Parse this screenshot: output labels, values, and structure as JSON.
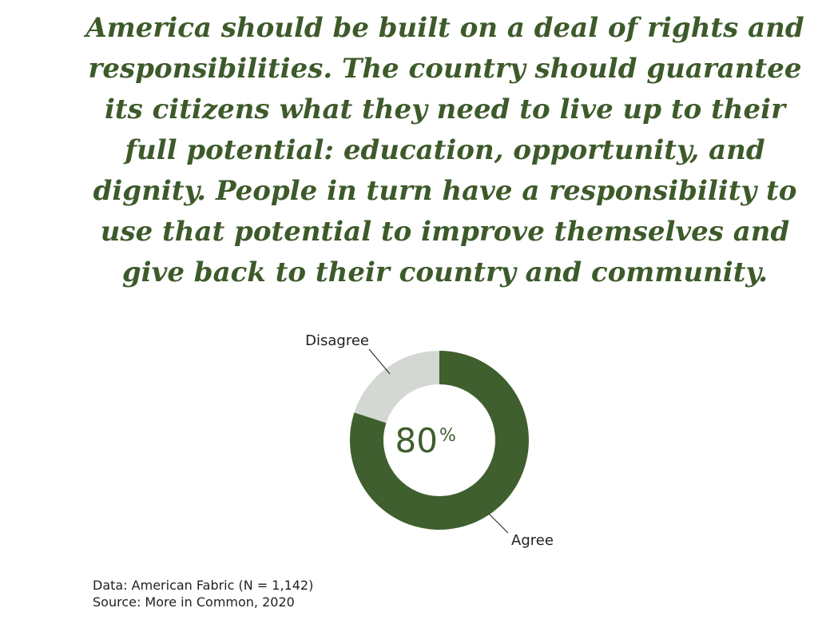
{
  "chart_data": {
    "type": "donut",
    "title": "America should be built on a deal of rights and responsibilities. The country should guarantee its citizens what they need to live up to their full potential: education, opportunity, and dignity. People in turn have a responsibility to use that potential to improve themselves and give back to their country and community.",
    "categories": [
      "Agree",
      "Disagree"
    ],
    "values": [
      80,
      20
    ],
    "colors": [
      "#3f5f2e",
      "#d3d8d2"
    ],
    "center_label": "80",
    "center_unit": "%",
    "notes": [
      "Data: American Fabric (N = 1,142)",
      "Source: More in Common, 2020"
    ]
  }
}
